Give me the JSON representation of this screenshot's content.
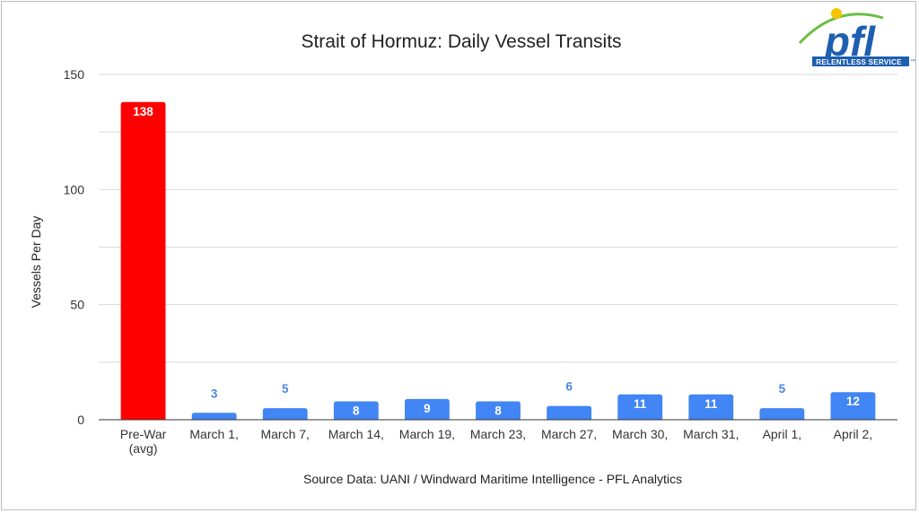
{
  "chart_data": {
    "type": "bar",
    "title": "Strait of Hormuz: Daily Vessel Transits",
    "ylabel": "Vessels Per Day",
    "xlabel": "",
    "source": "Source Data: UANI / Windward Maritime Intelligence - PFL Analytics",
    "ylim": [
      0,
      150
    ],
    "yticks": [
      0,
      50,
      100,
      150
    ],
    "grid": true,
    "categories": [
      [
        "Pre-War",
        "(avg)"
      ],
      [
        "March 1,"
      ],
      [
        "March 7,"
      ],
      [
        "March 14,"
      ],
      [
        "March 19,"
      ],
      [
        "March 23,"
      ],
      [
        "March 27,"
      ],
      [
        "March 30,"
      ],
      [
        "March 31,"
      ],
      [
        "April 1,"
      ],
      [
        "April 2,"
      ]
    ],
    "values": [
      138,
      3,
      5,
      8,
      9,
      8,
      6,
      11,
      11,
      5,
      12
    ],
    "colors": {
      "highlight": "#ff0000",
      "bar": "#4285f4",
      "label_outside": "#4a86e8",
      "label_inside": "#ffffff",
      "grid": "#d9d9d9",
      "axis": "#333333"
    }
  },
  "logo": {
    "wordmark": "pfl",
    "tagline": "RELENTLESS SERVICE",
    "tm": "™",
    "colors": {
      "blue": "#1f5fb0",
      "green": "#6dbe45",
      "yellow": "#f5c400"
    }
  }
}
